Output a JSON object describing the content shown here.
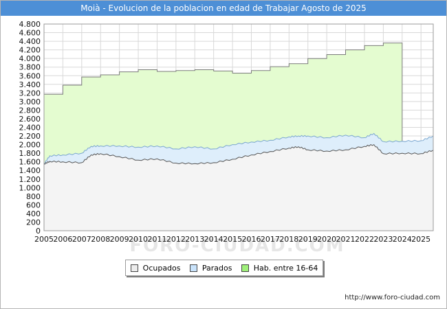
{
  "title": "Moià - Evolucion de la poblacion en edad de Trabajar Agosto de 2025",
  "footer_url": "http://www.foro-ciudad.com",
  "watermark": "FORO-CIUDAD.COM",
  "colors": {
    "title_bg": "#4d8fd6",
    "hab_fill": "#e4fcd0",
    "hab_stroke": "#7a7a7a",
    "parados_fill": "#deeefb",
    "parados_stroke": "#7aa6cf",
    "ocupados_fill": "#f4f4f4",
    "ocupados_stroke": "#555555",
    "hab_swatch": "#9ff07a",
    "parados_swatch": "#c9e3fb",
    "ocupados_swatch": "#ededed"
  },
  "chart_data": {
    "type": "area",
    "title": "Moià - Evolucion de la poblacion en edad de Trabajar Agosto de 2025",
    "xlabel": "",
    "ylabel": "",
    "xlim": [
      2005,
      2025.65
    ],
    "ylim": [
      0,
      4800
    ],
    "y_ticks": [
      0,
      200,
      400,
      600,
      800,
      1000,
      1200,
      1400,
      1600,
      1800,
      2000,
      2200,
      2400,
      2600,
      2800,
      3000,
      3200,
      3400,
      3600,
      3800,
      4000,
      4200,
      4400,
      4600,
      4800
    ],
    "y_tick_labels": [
      "0",
      "200",
      "400",
      "600",
      "800",
      "1.000",
      "1.200",
      "1.400",
      "1.600",
      "1.800",
      "2.000",
      "2.200",
      "2.400",
      "2.600",
      "2.800",
      "3.000",
      "3.200",
      "3.400",
      "3.600",
      "3.800",
      "4.000",
      "4.200",
      "4.400",
      "4.600",
      "4.800"
    ],
    "x_tick_labels": [
      "2005",
      "2006",
      "2007",
      "2008",
      "2009",
      "2010",
      "2011",
      "2012",
      "2013",
      "2014",
      "2015",
      "2016",
      "2017",
      "2018",
      "2019",
      "2020",
      "2021",
      "2022",
      "2023",
      "2024",
      "2025"
    ],
    "grid": true,
    "legend_position": "bottom-center",
    "series": [
      {
        "name": "Hab. entre 16-64",
        "step": true,
        "x": [
          2005,
          2006,
          2007,
          2008,
          2009,
          2010,
          2011,
          2012,
          2013,
          2014,
          2015,
          2016,
          2017,
          2018,
          2019,
          2020,
          2021,
          2022,
          2023,
          2024
        ],
        "values": [
          3170,
          3380,
          3570,
          3620,
          3690,
          3740,
          3700,
          3720,
          3740,
          3710,
          3660,
          3720,
          3810,
          3880,
          4000,
          4090,
          4200,
          4300,
          4360,
          0
        ]
      },
      {
        "name": "Parados",
        "x": [
          2005,
          2005.3,
          2006,
          2007,
          2007.5,
          2008,
          2009,
          2010,
          2011,
          2012,
          2013,
          2014,
          2015,
          2016,
          2017,
          2018,
          2018.5,
          2019,
          2020,
          2021,
          2022,
          2022.5,
          2023,
          2024,
          2025,
          2025.65
        ],
        "values": [
          1550,
          1740,
          1760,
          1800,
          1960,
          1970,
          1970,
          1940,
          1970,
          1900,
          1950,
          1900,
          2000,
          2060,
          2100,
          2180,
          2200,
          2200,
          2160,
          2220,
          2160,
          2260,
          2070,
          2080,
          2090,
          2200
        ]
      },
      {
        "name": "Ocupados",
        "x": [
          2005,
          2005.3,
          2006,
          2007,
          2007.5,
          2008,
          2009,
          2010,
          2011,
          2012,
          2013,
          2014,
          2015,
          2016,
          2017,
          2018,
          2018.5,
          2019,
          2020,
          2021,
          2022,
          2022.5,
          2023,
          2024,
          2025,
          2025.65
        ],
        "values": [
          1550,
          1610,
          1600,
          1580,
          1760,
          1790,
          1720,
          1640,
          1670,
          1570,
          1560,
          1580,
          1660,
          1760,
          1840,
          1920,
          1950,
          1880,
          1850,
          1880,
          1960,
          2000,
          1790,
          1800,
          1790,
          1870
        ]
      }
    ]
  },
  "legend": [
    {
      "label": "Ocupados",
      "swatch": "#ededed"
    },
    {
      "label": "Parados",
      "swatch": "#c9e3fb"
    },
    {
      "label": "Hab. entre 16-64",
      "swatch": "#9ff07a"
    }
  ]
}
